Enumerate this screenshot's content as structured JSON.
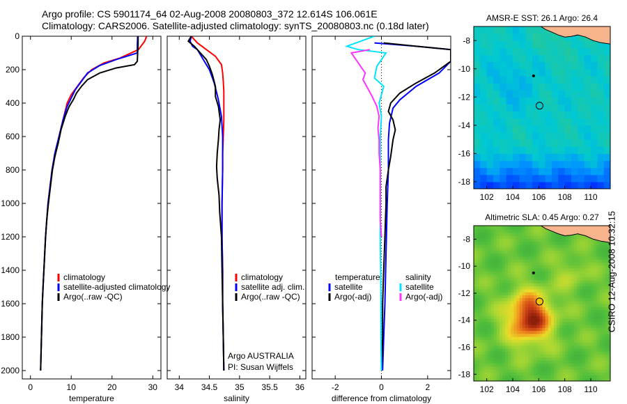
{
  "header": {
    "line1": "Argo profile: CS 5901174_64 02-Aug-2008 20080803_372 12.614S 106.061E",
    "line2": "Climatology: CARS2006. Satellite-adjusted climatology: synTS_20080803.nc (0.18d later)"
  },
  "side_label": "CSIRO 12-Aug-2008 10:32:15",
  "colors": {
    "climatology": "#ff0000",
    "satellite": "#0000ff",
    "argo": "#000000",
    "salinity_sat": "#00e5ff",
    "salinity_argo": "#ff33ff",
    "land": "#f7b48c"
  },
  "chart_data": [
    {
      "type": "line",
      "xlabel": "temperature",
      "ylabel": "",
      "xlim": [
        -2,
        32
      ],
      "ylim": [
        2050,
        0
      ],
      "xticks": [
        "0",
        "10",
        "20",
        "30"
      ],
      "xtick_values": [
        0,
        10,
        20,
        30
      ],
      "yticks": [
        "0",
        "200",
        "400",
        "600",
        "800",
        "1000",
        "1200",
        "1400",
        "1600",
        "1800",
        "2000"
      ],
      "ytick_values": [
        0,
        200,
        400,
        600,
        800,
        1000,
        1200,
        1400,
        1600,
        1800,
        2000
      ],
      "legend": [
        "climatology",
        "satellite-adjusted climatology",
        "Argo(..raw -QC)"
      ],
      "series": [
        {
          "name": "climatology",
          "color": "#ff0000",
          "points": [
            [
              28.5,
              0
            ],
            [
              28.0,
              30
            ],
            [
              26.5,
              80
            ],
            [
              22,
              130
            ],
            [
              18,
              160
            ],
            [
              15,
              200
            ],
            [
              13,
              250
            ],
            [
              11.5,
              300
            ],
            [
              10,
              350
            ],
            [
              9,
              400
            ],
            [
              8,
              500
            ],
            [
              7,
              600
            ],
            [
              6,
              700
            ],
            [
              5.3,
              800
            ],
            [
              4.8,
              900
            ],
            [
              4.3,
              1000
            ],
            [
              4.0,
              1100
            ],
            [
              3.7,
              1200
            ],
            [
              3.5,
              1300
            ],
            [
              3.3,
              1400
            ],
            [
              3.1,
              1500
            ],
            [
              2.9,
              1600
            ],
            [
              2.8,
              1700
            ],
            [
              2.7,
              1800
            ],
            [
              2.6,
              1900
            ],
            [
              2.5,
              2000
            ]
          ]
        },
        {
          "name": "satellite-adjusted climatology",
          "color": "#0000ff",
          "points": [
            [
              26.3,
              0
            ],
            [
              26.2,
              50
            ],
            [
              26.2,
              100
            ],
            [
              21,
              140
            ],
            [
              17,
              175
            ],
            [
              14,
              220
            ],
            [
              12.5,
              270
            ],
            [
              11,
              320
            ],
            [
              10,
              370
            ],
            [
              9,
              420
            ],
            [
              8,
              500
            ],
            [
              7,
              600
            ],
            [
              6,
              700
            ],
            [
              5.3,
              800
            ],
            [
              4.8,
              900
            ],
            [
              4.3,
              1000
            ],
            [
              4.0,
              1100
            ],
            [
              3.7,
              1200
            ],
            [
              3.5,
              1300
            ],
            [
              3.3,
              1400
            ],
            [
              3.1,
              1500
            ],
            [
              2.9,
              1600
            ],
            [
              2.8,
              1700
            ],
            [
              2.7,
              1800
            ],
            [
              2.6,
              1900
            ],
            [
              2.5,
              2000
            ]
          ]
        },
        {
          "name": "Argo(..raw -QC)",
          "color": "#000000",
          "points": [
            [
              26.4,
              0
            ],
            [
              26.4,
              50
            ],
            [
              26.3,
              100
            ],
            [
              26.2,
              150
            ],
            [
              25.5,
              170
            ],
            [
              21,
              190
            ],
            [
              17,
              220
            ],
            [
              14,
              260
            ],
            [
              12.5,
              300
            ],
            [
              11.3,
              340
            ],
            [
              10.5,
              380
            ],
            [
              9.5,
              420
            ],
            [
              8.5,
              480
            ],
            [
              7.5,
              560
            ],
            [
              6.8,
              640
            ],
            [
              6.0,
              720
            ],
            [
              5.4,
              800
            ],
            [
              4.9,
              900
            ],
            [
              4.4,
              1000
            ],
            [
              4.0,
              1100
            ],
            [
              3.7,
              1200
            ],
            [
              3.5,
              1300
            ],
            [
              3.3,
              1400
            ],
            [
              3.1,
              1500
            ],
            [
              2.9,
              1600
            ],
            [
              2.8,
              1700
            ],
            [
              2.7,
              1800
            ],
            [
              2.6,
              1900
            ],
            [
              2.5,
              2000
            ]
          ]
        }
      ]
    },
    {
      "type": "line",
      "xlabel": "salinity",
      "ylabel": "",
      "xlim": [
        33.8,
        36.1
      ],
      "ylim": [
        2050,
        0
      ],
      "xticks": [
        "34",
        "34.5",
        "35",
        "35.5",
        "36"
      ],
      "xtick_values": [
        34,
        34.5,
        35,
        35.5,
        36
      ],
      "legend": [
        "climatology",
        "satellite adj. clim.",
        "Argo(..raw -QC)"
      ],
      "annotation": [
        "Argo AUSTRALIA",
        "PI: Susan Wijffels"
      ],
      "series": [
        {
          "name": "climatology",
          "color": "#ff0000",
          "points": [
            [
              34.2,
              0
            ],
            [
              34.3,
              40
            ],
            [
              34.45,
              80
            ],
            [
              34.6,
              120
            ],
            [
              34.7,
              170
            ],
            [
              34.72,
              220
            ],
            [
              34.73,
              270
            ],
            [
              34.74,
              330
            ],
            [
              34.74,
              400
            ],
            [
              34.74,
              500
            ],
            [
              34.73,
              600
            ],
            [
              34.72,
              700
            ],
            [
              34.72,
              800
            ],
            [
              34.71,
              1000
            ],
            [
              34.71,
              1200
            ],
            [
              34.72,
              1400
            ],
            [
              34.72,
              1600
            ],
            [
              34.73,
              1800
            ],
            [
              34.74,
              2000
            ]
          ]
        },
        {
          "name": "satellite adj. clim.",
          "color": "#0000ff",
          "points": [
            [
              34.2,
              0
            ],
            [
              34.18,
              30
            ],
            [
              34.22,
              60
            ],
            [
              34.3,
              80
            ],
            [
              34.35,
              110
            ],
            [
              34.4,
              140
            ],
            [
              34.45,
              170
            ],
            [
              34.5,
              200
            ],
            [
              34.58,
              280
            ],
            [
              34.65,
              380
            ],
            [
              34.7,
              480
            ],
            [
              34.72,
              600
            ],
            [
              34.72,
              800
            ],
            [
              34.71,
              1000
            ],
            [
              34.71,
              1200
            ],
            [
              34.72,
              1400
            ],
            [
              34.72,
              1600
            ],
            [
              34.73,
              1800
            ],
            [
              34.74,
              2000
            ]
          ]
        },
        {
          "name": "Argo(..raw -QC)",
          "color": "#000000",
          "points": [
            [
              34.2,
              0
            ],
            [
              34.15,
              30
            ],
            [
              34.25,
              60
            ],
            [
              34.35,
              100
            ],
            [
              34.45,
              140
            ],
            [
              34.5,
              180
            ],
            [
              34.55,
              230
            ],
            [
              34.6,
              300
            ],
            [
              34.6,
              360
            ],
            [
              34.65,
              420
            ],
            [
              34.68,
              500
            ],
            [
              34.66,
              560
            ],
            [
              34.65,
              620
            ],
            [
              34.63,
              700
            ],
            [
              34.62,
              780
            ],
            [
              34.63,
              850
            ],
            [
              34.66,
              950
            ],
            [
              34.67,
              1050
            ],
            [
              34.7,
              1200
            ],
            [
              34.71,
              1400
            ],
            [
              34.72,
              1600
            ],
            [
              34.73,
              1800
            ],
            [
              34.74,
              2000
            ]
          ]
        }
      ]
    },
    {
      "type": "line",
      "xlabel": "difference from climatology",
      "ylabel": "",
      "xlim": [
        -3,
        3
      ],
      "ylim": [
        2050,
        0
      ],
      "xticks": [
        "-2",
        "0",
        "2"
      ],
      "xtick_values": [
        -2,
        0,
        2
      ],
      "legend": [
        "temperature",
        "satellite",
        "Argo(-adj)",
        "salinity",
        "satellite",
        "Argo(-adj)"
      ],
      "series": [
        {
          "name": "temperature satellite",
          "color": "#0000ff",
          "points": [
            [
              -0.3,
              40
            ],
            [
              1.5,
              60
            ],
            [
              3,
              80
            ],
            [
              3,
              100
            ],
            [
              3,
              150
            ],
            [
              2.5,
              220
            ],
            [
              1.5,
              300
            ],
            [
              0.8,
              380
            ],
            [
              0.5,
              430
            ],
            [
              0.35,
              520
            ],
            [
              0.3,
              620
            ],
            [
              0.3,
              800
            ],
            [
              0.25,
              1000
            ],
            [
              0.2,
              1300
            ],
            [
              0.15,
              1600
            ],
            [
              0.1,
              1800
            ],
            [
              0.05,
              2000
            ]
          ]
        },
        {
          "name": "temperature Argo(-adj)",
          "color": "#000000",
          "points": [
            [
              0.1,
              40
            ],
            [
              1.5,
              60
            ],
            [
              3,
              80
            ],
            [
              3,
              150
            ],
            [
              2.3,
              220
            ],
            [
              1.5,
              280
            ],
            [
              0.8,
              340
            ],
            [
              0.4,
              400
            ],
            [
              0.3,
              450
            ],
            [
              0.5,
              500
            ],
            [
              0.6,
              560
            ],
            [
              0.5,
              620
            ],
            [
              0.4,
              720
            ],
            [
              0.3,
              800
            ],
            [
              0.2,
              900
            ],
            [
              0.2,
              1000
            ],
            [
              0.15,
              1200
            ],
            [
              0.1,
              1400
            ],
            [
              0.05,
              1600
            ],
            [
              0.05,
              1800
            ],
            [
              0.0,
              2000
            ]
          ]
        },
        {
          "name": "salinity satellite",
          "color": "#00e5ff",
          "points": [
            [
              -0.3,
              0
            ],
            [
              -1.5,
              60
            ],
            [
              -1.0,
              80
            ],
            [
              0.2,
              100
            ],
            [
              -0.2,
              180
            ],
            [
              -0.3,
              250
            ],
            [
              0.1,
              300
            ],
            [
              -0.1,
              400
            ],
            [
              0.0,
              480
            ],
            [
              -0.05,
              600
            ],
            [
              -0.05,
              800
            ],
            [
              -0.05,
              1000
            ],
            [
              -0.05,
              1200
            ],
            [
              -0.03,
              1400
            ],
            [
              -0.02,
              1600
            ],
            [
              -0.02,
              1800
            ],
            [
              0.0,
              2000
            ]
          ]
        },
        {
          "name": "salinity Argo(-adj)",
          "color": "#ff33ff",
          "points": [
            [
              -0.5,
              80
            ],
            [
              -1.3,
              100
            ],
            [
              -1.1,
              140
            ],
            [
              -0.9,
              180
            ],
            [
              -0.7,
              220
            ],
            [
              -0.8,
              260
            ],
            [
              -0.6,
              310
            ],
            [
              -0.4,
              360
            ],
            [
              -0.2,
              420
            ],
            [
              -0.1,
              480
            ],
            [
              -0.15,
              550
            ],
            [
              -0.1,
              620
            ],
            [
              -0.1,
              700
            ],
            [
              -0.05,
              800
            ],
            [
              -0.05,
              900
            ],
            [
              -0.05,
              1000
            ],
            [
              -0.05,
              1100
            ],
            [
              0.0,
              1200
            ]
          ]
        }
      ]
    },
    {
      "type": "heatmap",
      "title": "AMSR-E SST: 26.1 Argo: 26.4",
      "xlim": [
        101,
        111.5
      ],
      "ylim": [
        -18.5,
        -7
      ],
      "xticks": [
        "102",
        "104",
        "106",
        "108",
        "110"
      ],
      "xtick_values": [
        102,
        104,
        106,
        108,
        110
      ],
      "yticks": [
        "-8",
        "-10",
        "-12",
        "-14",
        "-16",
        "-18"
      ],
      "ytick_values": [
        -8,
        -10,
        -12,
        -14,
        -16,
        -18
      ],
      "float_position": {
        "lon": 106.061,
        "lat": -12.614
      },
      "previous_position": {
        "lon": 105.6,
        "lat": -10.5
      }
    },
    {
      "type": "heatmap",
      "title": "Altimetric SLA: 0.45 Argo: 0.27",
      "xlim": [
        101,
        111.5
      ],
      "ylim": [
        -18.5,
        -7
      ],
      "xticks": [
        "102",
        "104",
        "106",
        "108",
        "110"
      ],
      "xtick_values": [
        102,
        104,
        106,
        108,
        110
      ],
      "yticks": [
        "-8",
        "-10",
        "-12",
        "-14",
        "-16",
        "-18"
      ],
      "ytick_values": [
        -8,
        -10,
        -12,
        -14,
        -16,
        -18
      ],
      "float_position": {
        "lon": 106.061,
        "lat": -12.614
      },
      "previous_position": {
        "lon": 105.6,
        "lat": -10.5
      }
    }
  ]
}
